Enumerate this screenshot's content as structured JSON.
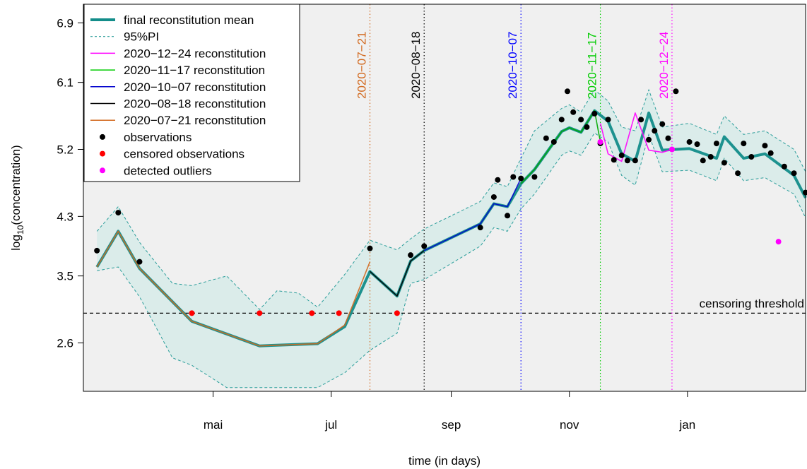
{
  "chart_data": {
    "type": "line",
    "xlabel": "time (in days)",
    "ylabel": "log10(concentration)",
    "ylabel_main": "log",
    "ylabel_sub": "10",
    "ylabel_rest": "(concentration)",
    "xlim": [
      "2020-02-24",
      "2021-03-03"
    ],
    "ylim": [
      1.95,
      7.15
    ],
    "yticks": [
      2.6,
      3.5,
      4.3,
      5.2,
      6.1,
      6.9
    ],
    "xticks": [
      {
        "date": "2020-05-01",
        "label": "mai"
      },
      {
        "date": "2020-07-01",
        "label": "jul"
      },
      {
        "date": "2020-09-01",
        "label": "sep"
      },
      {
        "date": "2020-11-01",
        "label": "nov"
      },
      {
        "date": "2021-01-01",
        "label": "jan"
      }
    ],
    "threshold": {
      "value": 3.0,
      "label": "censoring threshold"
    },
    "reconstruction_dates": [
      {
        "date": "2020-07-21",
        "label": "2020−07−21",
        "color": "#d2691e"
      },
      {
        "date": "2020-08-18",
        "label": "2020−08−18",
        "color": "#000000"
      },
      {
        "date": "2020-10-07",
        "label": "2020−10−07",
        "color": "#0000ff"
      },
      {
        "date": "2020-11-17",
        "label": "2020−11−17",
        "color": "#00cc00"
      },
      {
        "date": "2020-12-24",
        "label": "2020−12−24",
        "color": "#ff00ff"
      }
    ],
    "legend": {
      "position": "top-left",
      "items": [
        {
          "label": "final reconstitution mean",
          "kind": "line",
          "color": "#138d8a",
          "width": 4
        },
        {
          "label": "95%PI",
          "kind": "dashed",
          "color": "#2a9d9a",
          "width": 1
        },
        {
          "label": "2020−12−24 reconstitution",
          "kind": "line",
          "color": "#ff00ff",
          "width": 1.5
        },
        {
          "label": "2020−11−17 reconstitution",
          "kind": "line",
          "color": "#00cc00",
          "width": 1.5
        },
        {
          "label": "2020−10−07 reconstitution",
          "kind": "line",
          "color": "#0000cc",
          "width": 1.5
        },
        {
          "label": "2020−08−18 reconstitution",
          "kind": "line",
          "color": "#000000",
          "width": 1.5
        },
        {
          "label": "2020−07−21 reconstitution",
          "kind": "line",
          "color": "#d2691e",
          "width": 1.5
        },
        {
          "label": "observations",
          "kind": "point",
          "color": "#000000"
        },
        {
          "label": "censored observations",
          "kind": "point",
          "color": "#ff0000"
        },
        {
          "label": "detected outliers",
          "kind": "point",
          "color": "#ff00ff"
        }
      ]
    },
    "colors": {
      "mean": "#138d8a",
      "band_fill": "#dbecea",
      "band_line": "#2a9d9a",
      "r20200721": "#d2691e",
      "r20200818": "#000000",
      "r20201007": "#0000cc",
      "r20201117": "#00aa00",
      "r20201224": "#ff00ff",
      "plot_bg": "#f0f0f0"
    },
    "series": [
      {
        "key": "mean",
        "name": "final reconstitution mean",
        "x": [
          "2020-03-02",
          "2020-03-13",
          "2020-03-24",
          "2020-04-20",
          "2020-05-25",
          "2020-06-24",
          "2020-07-08",
          "2020-07-21",
          "2020-08-04",
          "2020-08-11",
          "2020-08-18",
          "2020-09-16",
          "2020-09-23",
          "2020-09-30",
          "2020-10-07",
          "2020-10-14",
          "2020-10-28",
          "2020-11-01",
          "2020-11-07",
          "2020-11-14",
          "2020-11-21",
          "2020-11-28",
          "2020-12-05",
          "2020-12-12",
          "2020-12-19",
          "2021-01-02",
          "2021-01-16",
          "2021-01-20",
          "2021-01-30",
          "2021-02-10",
          "2021-02-25",
          "2021-03-03"
        ],
        "y": [
          3.62,
          4.1,
          3.6,
          2.89,
          2.56,
          2.59,
          2.82,
          3.56,
          3.23,
          3.7,
          3.84,
          4.2,
          4.47,
          4.43,
          4.74,
          4.93,
          5.44,
          5.49,
          5.43,
          5.72,
          5.58,
          5.14,
          5.04,
          5.69,
          5.19,
          5.21,
          5.08,
          5.37,
          5.08,
          5.14,
          4.85,
          4.55
        ]
      },
      {
        "key": "r20200721",
        "name": "2020−07−21 reconstitution",
        "x": [
          "2020-03-02",
          "2020-03-13",
          "2020-03-24",
          "2020-04-20",
          "2020-05-25",
          "2020-06-24",
          "2020-07-08",
          "2020-07-21"
        ],
        "y": [
          3.62,
          4.1,
          3.6,
          2.89,
          2.56,
          2.59,
          2.84,
          3.69
        ]
      },
      {
        "key": "r20200818",
        "name": "2020−08−18 reconstitution",
        "x": [
          "2020-07-21",
          "2020-08-04",
          "2020-08-11",
          "2020-08-18"
        ],
        "y": [
          3.56,
          3.23,
          3.7,
          3.84
        ]
      },
      {
        "key": "r20201007",
        "name": "2020−10−07 reconstitution",
        "x": [
          "2020-08-18",
          "2020-09-16",
          "2020-09-23",
          "2020-09-30",
          "2020-10-07"
        ],
        "y": [
          3.84,
          4.2,
          4.47,
          4.43,
          4.81
        ]
      },
      {
        "key": "r20201117",
        "name": "2020−11−17 reconstitution",
        "x": [
          "2020-10-07",
          "2020-10-14",
          "2020-10-28",
          "2020-11-01",
          "2020-11-07",
          "2020-11-14",
          "2020-11-17"
        ],
        "y": [
          4.74,
          4.93,
          5.44,
          5.49,
          5.43,
          5.72,
          5.3
        ]
      },
      {
        "key": "r20201224",
        "name": "2020−12−24 reconstitution",
        "x": [
          "2020-11-17",
          "2020-11-21",
          "2020-11-28",
          "2020-12-05",
          "2020-12-12",
          "2020-12-19",
          "2020-12-24"
        ],
        "y": [
          5.55,
          5.14,
          5.04,
          5.69,
          5.19,
          5.16,
          5.2
        ]
      }
    ],
    "band_upper": {
      "x": [
        "2020-03-02",
        "2020-03-13",
        "2020-03-24",
        "2020-04-10",
        "2020-04-20",
        "2020-05-08",
        "2020-05-25",
        "2020-06-03",
        "2020-06-14",
        "2020-06-24",
        "2020-07-08",
        "2020-07-21",
        "2020-08-04",
        "2020-08-11",
        "2020-08-18",
        "2020-09-16",
        "2020-09-23",
        "2020-09-30",
        "2020-10-07",
        "2020-10-14",
        "2020-10-28",
        "2020-11-01",
        "2020-11-07",
        "2020-11-14",
        "2020-11-21",
        "2020-11-28",
        "2020-12-05",
        "2020-12-12",
        "2020-12-19",
        "2021-01-02",
        "2021-01-16",
        "2021-01-20",
        "2021-01-30",
        "2021-02-10",
        "2021-02-25",
        "2021-03-03"
      ],
      "y": [
        4.1,
        4.43,
        3.95,
        3.4,
        3.37,
        3.5,
        3.05,
        3.3,
        3.27,
        3.08,
        3.52,
        3.98,
        3.85,
        4.0,
        4.13,
        4.5,
        4.75,
        4.7,
        5.08,
        5.45,
        5.75,
        5.8,
        5.7,
        6.0,
        5.85,
        5.5,
        5.45,
        6.0,
        5.5,
        5.55,
        5.4,
        5.65,
        5.4,
        5.45,
        5.2,
        4.9
      ]
    },
    "band_lower": {
      "x": [
        "2020-03-02",
        "2020-03-13",
        "2020-03-24",
        "2020-04-10",
        "2020-04-20",
        "2020-05-08",
        "2020-05-25",
        "2020-06-03",
        "2020-06-14",
        "2020-06-24",
        "2020-07-08",
        "2020-07-21",
        "2020-08-04",
        "2020-08-11",
        "2020-08-18",
        "2020-09-16",
        "2020-09-23",
        "2020-09-30",
        "2020-10-07",
        "2020-10-14",
        "2020-10-28",
        "2020-11-01",
        "2020-11-07",
        "2020-11-14",
        "2020-11-21",
        "2020-11-28",
        "2020-12-05",
        "2020-12-12",
        "2020-12-19",
        "2021-01-02",
        "2021-01-16",
        "2021-01-20",
        "2021-01-30",
        "2021-02-10",
        "2021-02-25",
        "2021-03-03"
      ],
      "y": [
        3.57,
        3.62,
        3.22,
        2.4,
        2.3,
        2.0,
        2.0,
        2.0,
        2.0,
        2.0,
        2.2,
        2.5,
        2.73,
        3.4,
        3.45,
        3.9,
        4.15,
        4.1,
        4.4,
        4.6,
        5.12,
        5.18,
        5.12,
        5.42,
        5.3,
        4.85,
        4.72,
        5.4,
        4.9,
        4.92,
        4.78,
        5.08,
        4.78,
        4.82,
        4.6,
        4.28
      ]
    },
    "observations": {
      "x": [
        "2020-03-02",
        "2020-03-13",
        "2020-03-24",
        "2020-08-11",
        "2020-08-18",
        "2020-07-21",
        "2020-09-16",
        "2020-09-23",
        "2020-09-30",
        "2020-10-07",
        "2020-10-14",
        "2020-10-28",
        "2020-10-31",
        "2020-11-03",
        "2020-11-07",
        "2020-11-14",
        "2020-11-21",
        "2020-11-28",
        "2020-12-05",
        "2020-12-12",
        "2020-12-19",
        "2020-12-26",
        "2021-01-02",
        "2021-01-09",
        "2021-01-16",
        "2021-01-20",
        "2021-01-30",
        "2021-02-10",
        "2021-02-25",
        "2021-03-03",
        "2020-09-25",
        "2020-10-03",
        "2020-10-20",
        "2020-10-24",
        "2020-11-10",
        "2020-11-17",
        "2020-11-24",
        "2020-12-01",
        "2020-12-08",
        "2020-12-15",
        "2020-12-22",
        "2021-01-06",
        "2021-01-13",
        "2021-01-27",
        "2021-02-03",
        "2021-02-13",
        "2021-02-20"
      ],
      "y": [
        3.84,
        4.35,
        3.69,
        3.78,
        3.9,
        3.87,
        4.15,
        4.56,
        4.31,
        4.81,
        4.83,
        5.6,
        5.98,
        5.7,
        5.6,
        5.68,
        5.6,
        5.12,
        5.05,
        5.33,
        5.54,
        5.98,
        5.3,
        5.05,
        5.28,
        5.02,
        5.28,
        5.25,
        4.88,
        4.62,
        4.79,
        4.83,
        5.35,
        5.3,
        5.5,
        5.28,
        5.06,
        5.05,
        5.6,
        5.45,
        5.35,
        5.27,
        5.1,
        4.88,
        5.1,
        5.15,
        4.97
      ]
    },
    "censored_observations": {
      "x": [
        "2020-04-20",
        "2020-05-25",
        "2020-06-21",
        "2020-07-05",
        "2020-08-04"
      ],
      "y": [
        3.0,
        3.0,
        3.0,
        3.0,
        3.0
      ]
    },
    "detected_outliers": {
      "x": [
        "2020-12-24",
        "2020-11-17",
        "2021-02-17"
      ],
      "y": [
        5.2,
        5.3,
        3.96
      ]
    }
  }
}
